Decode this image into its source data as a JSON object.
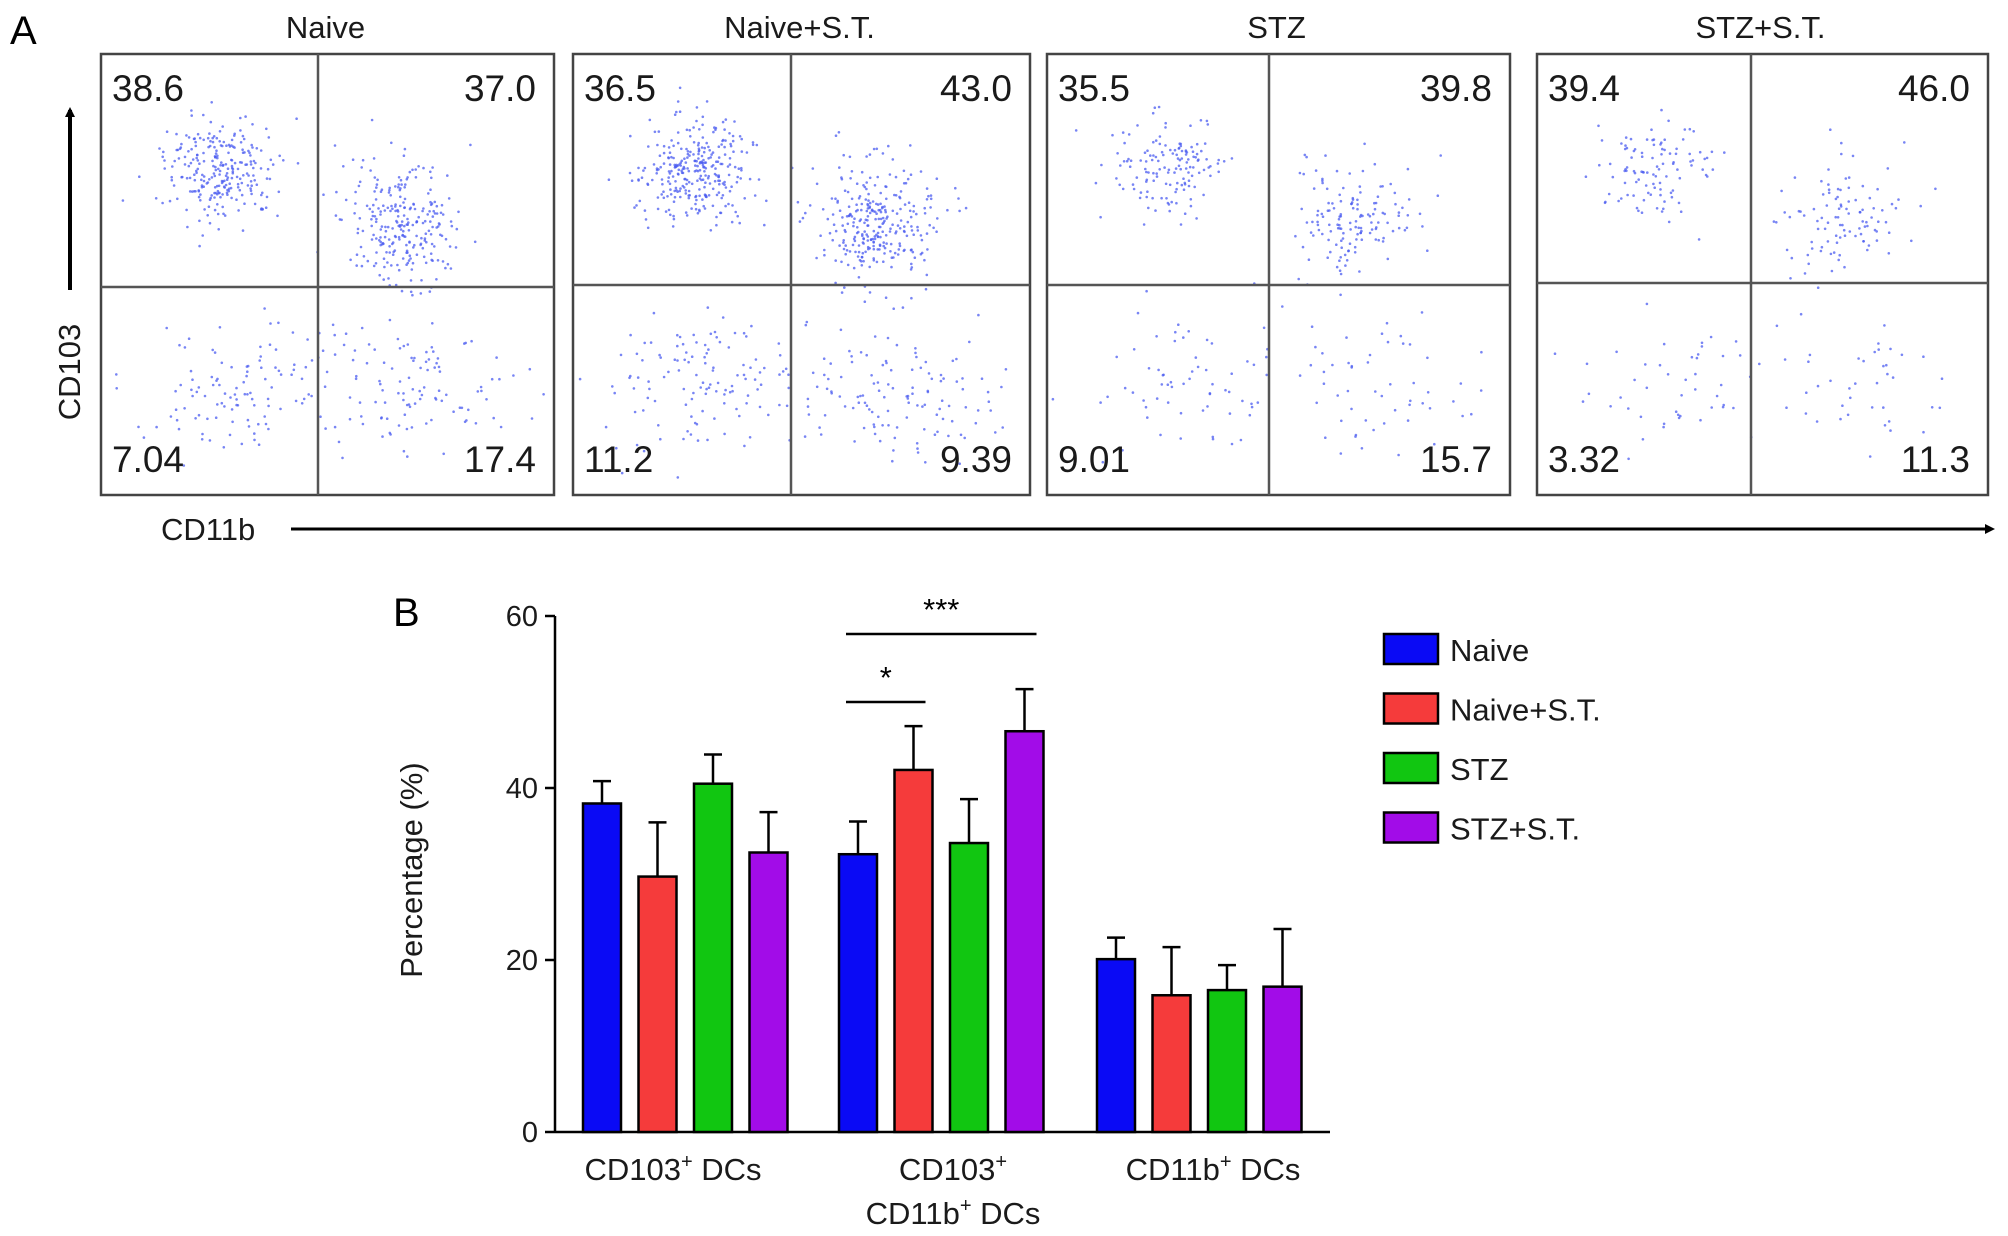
{
  "panel_a": {
    "letter": "A",
    "y_axis_label": "CD103",
    "x_axis_label": "CD11b",
    "plots": [
      {
        "title": "Naive",
        "q_ul": "38.6",
        "q_ur": "37.0",
        "q_ll": "7.04",
        "q_lr": "17.4"
      },
      {
        "title": "Naive+S.T.",
        "q_ul": "36.5",
        "q_ur": "43.0",
        "q_ll": "11.2",
        "q_lr": "9.39"
      },
      {
        "title": "STZ",
        "q_ul": "35.5",
        "q_ur": "39.8",
        "q_ll": "9.01",
        "q_lr": "15.7"
      },
      {
        "title": "STZ+S.T.",
        "q_ul": "39.4",
        "q_ur": "46.0",
        "q_ll": "3.32",
        "q_lr": "11.3"
      }
    ]
  },
  "panel_b": {
    "letter": "B",
    "significance": [
      "*",
      "***"
    ]
  },
  "chart_data": {
    "type": "bar",
    "categories": [
      {
        "line1": "CD103",
        "sup1": "+",
        "line1_rest": " DCs",
        "line2": "",
        "sup2": "",
        "line2_rest": ""
      },
      {
        "line1": "CD103",
        "sup1": "+",
        "line1_rest": "",
        "line2": "CD11b",
        "sup2": "+",
        "line2_rest": " DCs"
      },
      {
        "line1": "CD11b",
        "sup1": "+",
        "line1_rest": " DCs",
        "line2": "",
        "sup2": "",
        "line2_rest": ""
      }
    ],
    "series": [
      {
        "name": "Naive",
        "color": "#0a0af5",
        "values": [
          38.2,
          32.3,
          20.1
        ],
        "errors": [
          2.6,
          3.8,
          2.5
        ]
      },
      {
        "name": "Naive+S.T.",
        "color": "#f53b3b",
        "values": [
          29.7,
          42.1,
          15.9
        ],
        "errors": [
          6.3,
          5.1,
          5.6
        ]
      },
      {
        "name": "STZ",
        "color": "#11c611",
        "values": [
          40.5,
          33.6,
          16.5
        ],
        "errors": [
          3.4,
          5.1,
          2.9
        ]
      },
      {
        "name": "STZ+S.T.",
        "color": "#a20ce8",
        "values": [
          32.5,
          46.6,
          16.9
        ],
        "errors": [
          4.7,
          4.9,
          6.7
        ]
      }
    ],
    "ylabel": "Percentage (%)",
    "ylim": [
      0,
      60
    ],
    "yticks": [
      "0",
      "20",
      "40",
      "60"
    ],
    "legend_position": "right",
    "grid": false,
    "annotations": [
      {
        "label": "*",
        "from_series": "Naive",
        "to_series": "Naive+S.T.",
        "category_index": 1
      },
      {
        "label": "***",
        "from_series": "Naive",
        "to_series": "STZ+S.T.",
        "category_index": 1
      }
    ]
  }
}
